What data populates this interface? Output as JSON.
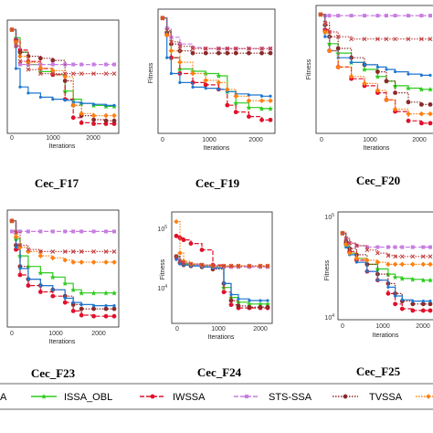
{
  "chart_data": [
    {
      "type": "line",
      "title": "Cec_F17",
      "xlabel": "Iterations",
      "ylabel": "",
      "yscale": "linear",
      "x_ticks": [
        0,
        1000,
        2000
      ],
      "xlim": [
        0,
        2500
      ],
      "ylim": [
        0,
        100
      ],
      "x": [
        0,
        100,
        200,
        400,
        700,
        1000,
        1300,
        1500,
        1700,
        2000,
        2300,
        2500
      ],
      "series": [
        {
          "name": "ISSA_OBL",
          "values": [
            96,
            88,
            74,
            62,
            55,
            52,
            36,
            28,
            24,
            22,
            21,
            21
          ]
        },
        {
          "name": "IWSSA",
          "values": [
            96,
            86,
            76,
            65,
            58,
            52,
            28,
            10,
            5,
            4,
            4,
            4
          ]
        },
        {
          "name": "STS-SSA",
          "values": [
            96,
            80,
            62,
            62,
            62,
            62,
            62,
            62,
            62,
            62,
            62,
            62
          ]
        },
        {
          "name": "TVSSA",
          "values": [
            96,
            84,
            74,
            70,
            68,
            66,
            46,
            22,
            12,
            8,
            7,
            7
          ]
        },
        {
          "name": "",
          "values": [
            96,
            58,
            40,
            34,
            30,
            28,
            27,
            25,
            24,
            23,
            22,
            22
          ]
        },
        {
          "name": "",
          "values": [
            96,
            84,
            70,
            64,
            58,
            56,
            50,
            22,
            14,
            12,
            12,
            12
          ]
        },
        {
          "name": "",
          "values": [
            96,
            80,
            65,
            57,
            53,
            53,
            53,
            53,
            53,
            53,
            53,
            53
          ]
        }
      ]
    },
    {
      "type": "line",
      "title": "Cec_F19",
      "xlabel": "Iterations",
      "ylabel": "Fitness",
      "yscale": "linear",
      "x_ticks": [
        0,
        1000,
        2000
      ],
      "xlim": [
        0,
        2500
      ],
      "ylim": [
        0,
        100
      ],
      "x": [
        0,
        100,
        200,
        400,
        700,
        1000,
        1300,
        1500,
        1700,
        2000,
        2300,
        2500
      ],
      "series": [
        {
          "name": "ISSA_OBL",
          "values": [
            97,
            85,
            62,
            52,
            50,
            48,
            46,
            32,
            22,
            18,
            17,
            17
          ]
        },
        {
          "name": "IWSSA",
          "values": [
            97,
            82,
            62,
            48,
            40,
            38,
            34,
            20,
            14,
            10,
            7,
            7
          ]
        },
        {
          "name": "STS-SSA",
          "values": [
            97,
            88,
            80,
            74,
            71,
            70,
            70,
            70,
            70,
            70,
            70,
            70
          ]
        },
        {
          "name": "TVSSA",
          "values": [
            97,
            84,
            74,
            68,
            66,
            66,
            66,
            66,
            66,
            66,
            66,
            66
          ]
        },
        {
          "name": "",
          "values": [
            97,
            62,
            48,
            40,
            36,
            35,
            34,
            32,
            30,
            29,
            28,
            28
          ]
        },
        {
          "name": "",
          "values": [
            97,
            82,
            68,
            58,
            48,
            42,
            40,
            34,
            28,
            24,
            24,
            24
          ]
        },
        {
          "name": "",
          "values": [
            97,
            86,
            76,
            72,
            70,
            70,
            70,
            70,
            70,
            70,
            70,
            70
          ]
        }
      ]
    },
    {
      "type": "line",
      "title": "Cec_F20",
      "xlabel": "Iterations",
      "ylabel": "Fitness",
      "yscale": "linear",
      "x_ticks": [
        0,
        1000,
        2000
      ],
      "xlim": [
        0,
        2500
      ],
      "ylim": [
        0,
        100
      ],
      "x": [
        0,
        100,
        200,
        400,
        700,
        1000,
        1300,
        1500,
        1700,
        2000,
        2300,
        2500
      ],
      "series": [
        {
          "name": "ISSA_OBL",
          "values": [
            97,
            82,
            72,
            64,
            56,
            50,
            44,
            40,
            36,
            34,
            33,
            33
          ]
        },
        {
          "name": "IWSSA",
          "values": [
            97,
            84,
            66,
            52,
            42,
            36,
            30,
            24,
            14,
            6,
            4,
            4
          ]
        },
        {
          "name": "STS-SSA",
          "values": [
            97,
            96,
            96,
            96,
            96,
            96,
            96,
            96,
            96,
            96,
            96,
            96
          ]
        },
        {
          "name": "TVSSA",
          "values": [
            97,
            88,
            78,
            68,
            60,
            54,
            48,
            40,
            30,
            22,
            20,
            20
          ]
        },
        {
          "name": "",
          "values": [
            97,
            78,
            66,
            60,
            56,
            54,
            52,
            50,
            48,
            46,
            45,
            45
          ]
        },
        {
          "name": "",
          "values": [
            97,
            82,
            66,
            52,
            44,
            38,
            32,
            24,
            16,
            12,
            12,
            12
          ]
        },
        {
          "name": "",
          "values": [
            97,
            90,
            82,
            78,
            76,
            76,
            76,
            76,
            76,
            76,
            76,
            76
          ]
        }
      ]
    },
    {
      "type": "line",
      "title": "Cec_F23",
      "xlabel": "Iterations",
      "ylabel": "",
      "yscale": "linear",
      "x_ticks": [
        0,
        1000,
        2000
      ],
      "xlim": [
        0,
        2500
      ],
      "ylim": [
        0,
        100
      ],
      "x": [
        0,
        100,
        200,
        400,
        700,
        1000,
        1300,
        1500,
        1700,
        2000,
        2300,
        2500
      ],
      "series": [
        {
          "name": "ISSA_OBL",
          "values": [
            95,
            78,
            62,
            52,
            46,
            42,
            36,
            30,
            27,
            27,
            27,
            27
          ]
        },
        {
          "name": "IWSSA",
          "values": [
            95,
            68,
            44,
            34,
            28,
            24,
            18,
            10,
            6,
            5,
            5,
            5
          ]
        },
        {
          "name": "STS-SSA",
          "values": [
            85,
            85,
            85,
            85,
            85,
            85,
            85,
            85,
            85,
            85,
            85,
            85
          ]
        },
        {
          "name": "TVSSA",
          "values": [
            95,
            72,
            52,
            40,
            34,
            30,
            24,
            16,
            12,
            12,
            12,
            12
          ]
        },
        {
          "name": "",
          "values": [
            95,
            70,
            50,
            40,
            34,
            30,
            22,
            18,
            16,
            15,
            15,
            15
          ]
        },
        {
          "name": "",
          "values": [
            95,
            80,
            70,
            66,
            62,
            60,
            58,
            56,
            56,
            56,
            56,
            56
          ]
        },
        {
          "name": "",
          "values": [
            95,
            84,
            72,
            68,
            66,
            66,
            66,
            66,
            66,
            66,
            66,
            66
          ]
        }
      ]
    },
    {
      "type": "line",
      "title": "Cec_F24",
      "xlabel": "Iterations",
      "ylabel": "Fitness",
      "yscale": "log",
      "y_ticks": [
        "10^4",
        "10^5"
      ],
      "x_ticks": [
        0,
        1000,
        2000
      ],
      "xlim": [
        0,
        2500
      ],
      "ylim": [
        5000,
        150000
      ],
      "x": [
        0,
        100,
        200,
        400,
        700,
        1000,
        1300,
        1500,
        1700,
        2000,
        2300,
        2500
      ],
      "series": [
        {
          "name": "ISSA_OBL",
          "values": [
            40000,
            33000,
            31000,
            30000,
            29000,
            28000,
            14000,
            10000,
            8500,
            8000,
            8000,
            8000
          ]
        },
        {
          "name": "IWSSA",
          "values": [
            80000,
            75000,
            70000,
            62000,
            50000,
            30000,
            12000,
            7800,
            7000,
            7000,
            7000,
            7000
          ]
        },
        {
          "name": "STS-SSA",
          "values": [
            38000,
            34000,
            32000,
            30000,
            29000,
            28000,
            28000,
            28000,
            28000,
            28000,
            28000,
            28000
          ]
        },
        {
          "name": "TVSSA",
          "values": [
            40000,
            32000,
            30000,
            29000,
            28000,
            26000,
            16000,
            9000,
            7500,
            7200,
            7200,
            7200
          ]
        },
        {
          "name": "",
          "values": [
            36000,
            31000,
            30000,
            29000,
            28000,
            27000,
            16000,
            11000,
            9500,
            9000,
            9000,
            9000
          ]
        },
        {
          "name": "",
          "values": [
            130000,
            45000,
            34000,
            31000,
            30000,
            29000,
            29000,
            29000,
            29000,
            29000,
            29000,
            29000
          ]
        },
        {
          "name": "",
          "values": [
            40000,
            34000,
            32000,
            31000,
            30000,
            29000,
            29000,
            29000,
            29000,
            29000,
            29000,
            29000
          ]
        }
      ]
    },
    {
      "type": "line",
      "title": "Cec_F25",
      "xlabel": "Iterations",
      "ylabel": "Fitness",
      "yscale": "log",
      "y_ticks": [
        "10^4",
        "10^5"
      ],
      "x_ticks": [
        0,
        1000,
        2000
      ],
      "xlim": [
        0,
        2500
      ],
      "ylim": [
        10000,
        120000
      ],
      "x": [
        0,
        100,
        200,
        400,
        700,
        1000,
        1300,
        1500,
        1700,
        2000,
        2300,
        2500
      ],
      "series": [
        {
          "name": "ISSA_OBL",
          "values": [
            80000,
            58000,
            48000,
            42000,
            36000,
            32000,
            28000,
            26000,
            25000,
            24500,
            24000,
            24000
          ]
        },
        {
          "name": "IWSSA",
          "values": [
            80000,
            62000,
            50000,
            40000,
            30000,
            24000,
            17000,
            13000,
            11500,
            11000,
            11000,
            11000
          ]
        },
        {
          "name": "STS-SSA",
          "values": [
            80000,
            68000,
            62000,
            58000,
            56000,
            56000,
            56000,
            56000,
            56000,
            56000,
            56000,
            56000
          ]
        },
        {
          "name": "TVSSA",
          "values": [
            80000,
            64000,
            54000,
            46000,
            36000,
            28000,
            22000,
            17000,
            14000,
            13000,
            13000,
            13000
          ]
        },
        {
          "name": "",
          "values": [
            80000,
            56000,
            46000,
            38000,
            30000,
            24000,
            20000,
            16000,
            14500,
            14000,
            14000,
            14000
          ]
        },
        {
          "name": "",
          "values": [
            80000,
            60000,
            48000,
            42000,
            40000,
            38000,
            36000,
            36000,
            36000,
            36000,
            36000,
            36000
          ]
        },
        {
          "name": "",
          "values": [
            80000,
            70000,
            62000,
            58000,
            52000,
            48000,
            45000,
            44000,
            44000,
            44000,
            44000,
            44000
          ]
        }
      ]
    }
  ],
  "styles": [
    {
      "color": "#2ecc1f",
      "dash": "",
      "marker": "star"
    },
    {
      "color": "#e0102b",
      "dash": "5,2",
      "marker": "circle"
    },
    {
      "color": "#c77de0",
      "dash": "5,2",
      "marker": "square"
    },
    {
      "color": "#8b2a2a",
      "dash": "1.5,1.5",
      "marker": "circle"
    },
    {
      "color": "#1f77d0",
      "dash": "",
      "marker": "dot"
    },
    {
      "color": "#ff7f0e",
      "dash": "1.5,1.5",
      "marker": "diamond"
    },
    {
      "color": "#c24040",
      "dash": "1.5,1.5",
      "marker": "x"
    }
  ],
  "legend": {
    "entries": [
      {
        "label": "A",
        "style": 4,
        "sample": "clipped"
      },
      {
        "label": "ISSA_OBL",
        "style": 0
      },
      {
        "label": "IWSSA",
        "style": 1
      },
      {
        "label": "STS-SSA",
        "style": 2
      },
      {
        "label": "TVSSA",
        "style": 3
      },
      {
        "label": "",
        "style": 5,
        "sample": "partial"
      }
    ]
  }
}
